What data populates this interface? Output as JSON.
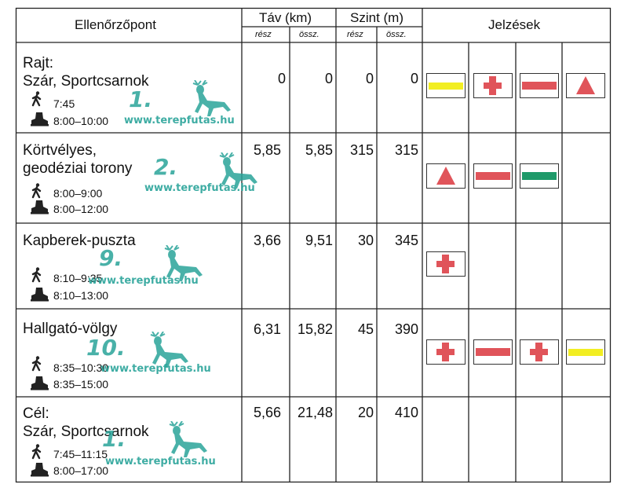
{
  "header": {
    "checkpoint": "Ellenőrzőpont",
    "distance": "Táv (km)",
    "elevation": "Szint (m)",
    "marks": "Jelzések",
    "part": "rész",
    "total": "össz."
  },
  "rows": [
    {
      "name_lines": [
        "Rajt:",
        "Szár, Sportcsarnok"
      ],
      "run_time": "7:45",
      "walk_time": "8:00–10:00",
      "dist_part": "0",
      "dist_total": "0",
      "elev_part": "0",
      "elev_total": "0",
      "stamp_number": "1.",
      "stamp_url": "www.terepfutas.hu",
      "signs": [
        "yellow-bar",
        "red-cross",
        "red-bar",
        "red-triangle"
      ]
    },
    {
      "name_lines": [
        "Körtvélyes,",
        "geodéziai torony"
      ],
      "run_time": "8:00–9:00",
      "walk_time": "8:00–12:00",
      "dist_part": "5,85",
      "dist_total": "5,85",
      "elev_part": "315",
      "elev_total": "315",
      "stamp_number": "2.",
      "stamp_url": "www.terepfutas.hu",
      "signs": [
        "red-triangle",
        "red-bar",
        "green-bar"
      ]
    },
    {
      "name_lines": [
        "Kapberek-puszta"
      ],
      "run_time": "8:10–9:35",
      "walk_time": "8:10–13:00",
      "dist_part": "3,66",
      "dist_total": "9,51",
      "elev_part": "30",
      "elev_total": "345",
      "stamp_number": "9.",
      "stamp_url": "www.terepfutas.hu",
      "signs": [
        "red-cross"
      ]
    },
    {
      "name_lines": [
        "Hallgató-völgy"
      ],
      "run_time": "8:35–10:30",
      "walk_time": "8:35–15:00",
      "dist_part": "6,31",
      "dist_total": "15,82",
      "elev_part": "45",
      "elev_total": "390",
      "stamp_number": "10.",
      "stamp_url": "www.terepfutas.hu",
      "signs": [
        "red-cross",
        "red-bar",
        "red-cross",
        "yellow-bar"
      ]
    },
    {
      "name_lines": [
        "Cél:",
        "Szár, Sportcsarnok"
      ],
      "run_time": "7:45–11:15",
      "walk_time": "8:00–17:00",
      "dist_part": "5,66",
      "dist_total": "21,48",
      "elev_part": "20",
      "elev_total": "410",
      "stamp_number": "1.",
      "stamp_url": "www.terepfutas.hu",
      "signs": []
    }
  ],
  "colors": {
    "stamp": "#2aa49a",
    "red_mark": "#e0545a",
    "yellow_mark": "#f2ee22",
    "green_mark": "#1f9a6a"
  },
  "icons": {
    "runner": "runner-icon",
    "hiker": "hiking-boot-icon",
    "stamp_animal": "deer-stamp-icon"
  }
}
